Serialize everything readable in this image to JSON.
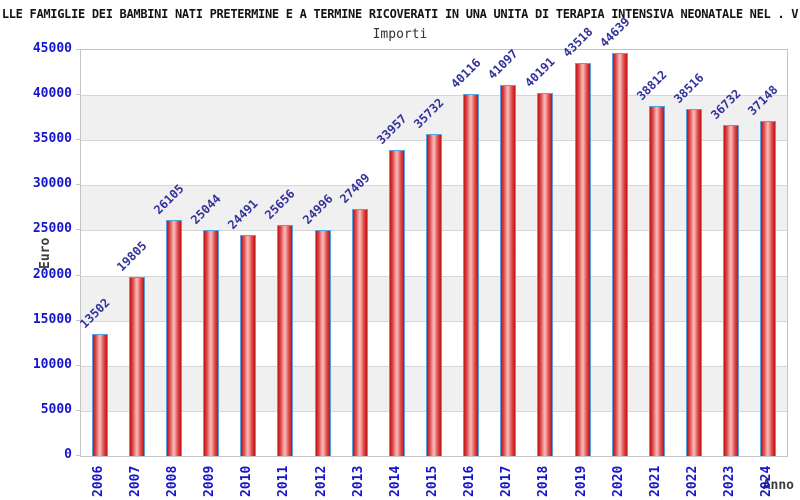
{
  "page": {
    "title": "LLE FAMIGLIE DEI BAMBINI NATI PRETERMINE E A TERMINE RICOVERATI IN UNA UNITA DI TERAPIA INTENSIVA NEONATALE NEL . V",
    "subtitle": "Importi"
  },
  "chart_data": {
    "type": "bar",
    "title": "Importi",
    "xlabel": "Anno",
    "ylabel": "Euro",
    "categories": [
      "2006",
      "2007",
      "2008",
      "2009",
      "2010",
      "2011",
      "2012",
      "2013",
      "2014",
      "2015",
      "2016",
      "2017",
      "2018",
      "2019",
      "2020",
      "2021",
      "2022",
      "2023",
      "2024"
    ],
    "values": [
      13502,
      19805,
      26105,
      25044,
      24491,
      25656,
      24996,
      27409,
      33957,
      35732,
      40116,
      41097,
      40191,
      43518,
      44639,
      38812,
      38516,
      36732,
      37148
    ],
    "ylim": [
      0,
      45000
    ],
    "yticks": [
      0,
      5000,
      10000,
      15000,
      20000,
      25000,
      30000,
      35000,
      40000,
      45000
    ],
    "grid": "horizontal-bands-alternating",
    "legend": null,
    "bar_label_rotation_deg": -45,
    "x_tick_rotation_deg": -90
  },
  "colors": {
    "bar_edge_fill": "#c11414",
    "bar_mid_fill": "#dd4848",
    "bar_center_fill": "#f6b2b2",
    "bar_border": "#55a1e1",
    "value_label": "#32329b",
    "tick_label": "#1515cc",
    "axis_title": "#3c3c3c",
    "title_color": "#141414",
    "subtitle_color": "#333333",
    "band_gray": "#f0f0f0",
    "band_white": "#ffffff",
    "gridline": "#d6d6d6",
    "plot_border": "#c4c4c4"
  }
}
